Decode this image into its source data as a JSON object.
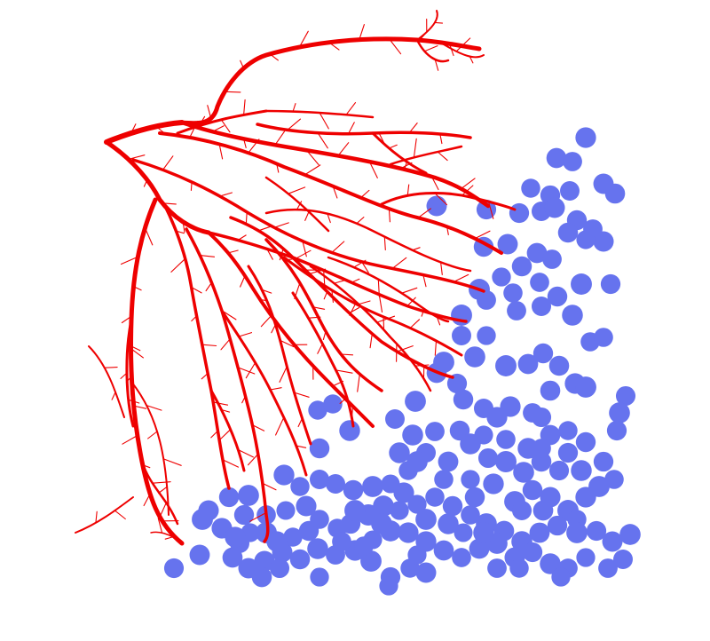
{
  "scene": {
    "subject": "branching-vessel-network-with-cell-cluster",
    "colors": {
      "background": "#ffffff",
      "vessel": "#ee0000",
      "cell": "#6673ee"
    }
  }
}
